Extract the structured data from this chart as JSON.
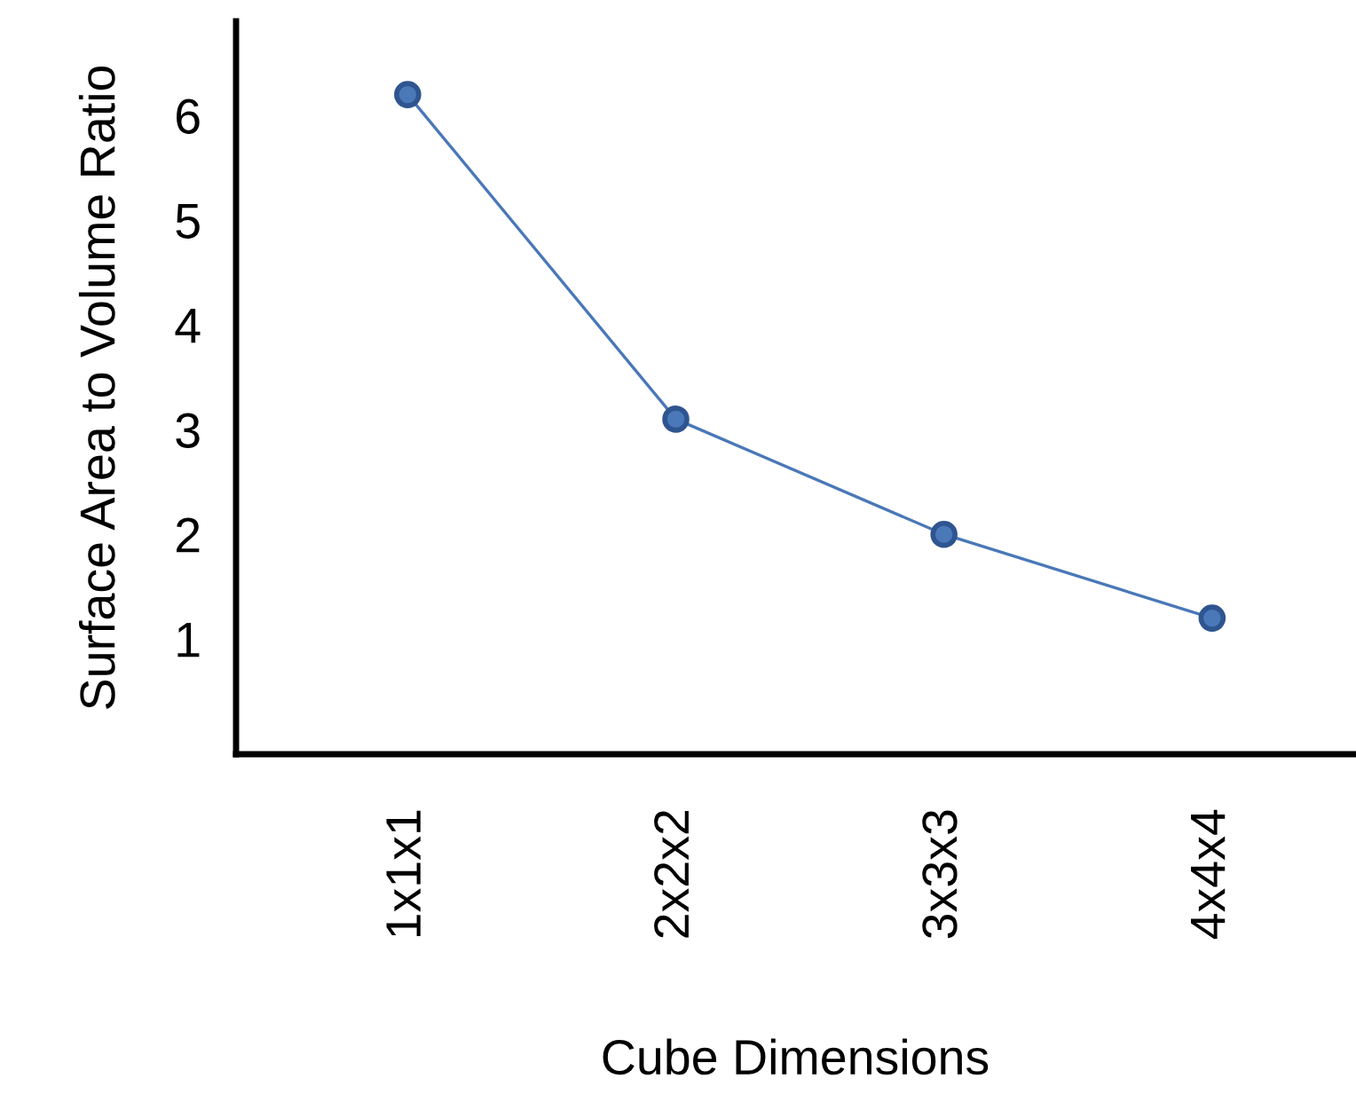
{
  "chart_data": {
    "type": "line",
    "xlabel": "Cube Dimensions",
    "ylabel": "Surface Area to Volume Ratio",
    "categories": [
      "1x1x1",
      "2x2x2",
      "3x3x3",
      "4x4x4"
    ],
    "series": [
      {
        "color": "#4a78b8",
        "values": [
          6.2,
          3.1,
          2.0,
          1.2
        ]
      }
    ],
    "ylim": [
      -0.1,
      6.9
    ],
    "yticks": [
      1,
      2,
      3,
      4,
      5,
      6
    ],
    "marker": "circle",
    "grid": false,
    "legend": false
  }
}
